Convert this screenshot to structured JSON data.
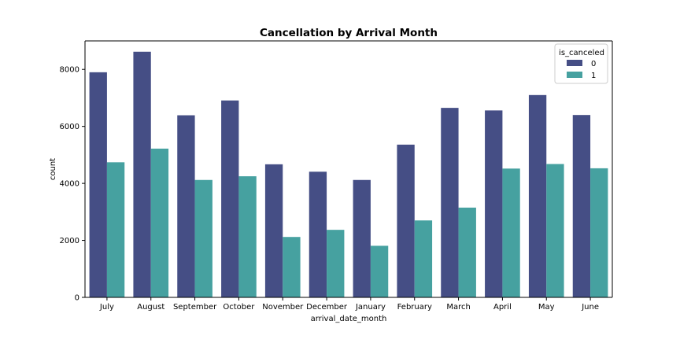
{
  "chart_data": {
    "type": "bar",
    "title": "Cancellation by Arrival Month",
    "xlabel": "arrival_date_month",
    "ylabel": "count",
    "ylim": [
      0,
      9000
    ],
    "yticks": [
      0,
      2000,
      4000,
      6000,
      8000
    ],
    "grid": false,
    "legend_title": "is_canceled",
    "legend_position": "top-right",
    "categories": [
      "July",
      "August",
      "September",
      "October",
      "November",
      "December",
      "January",
      "February",
      "March",
      "April",
      "May",
      "June"
    ],
    "series": [
      {
        "name": "0",
        "color": "#454e85",
        "values": [
          7900,
          8620,
          6390,
          6910,
          4670,
          4410,
          4120,
          5360,
          6650,
          6560,
          7100,
          6400
        ]
      },
      {
        "name": "1",
        "color": "#46a1a0",
        "values": [
          4740,
          5220,
          4120,
          4250,
          2120,
          2370,
          1810,
          2700,
          3150,
          4520,
          4680,
          4530
        ]
      }
    ]
  }
}
